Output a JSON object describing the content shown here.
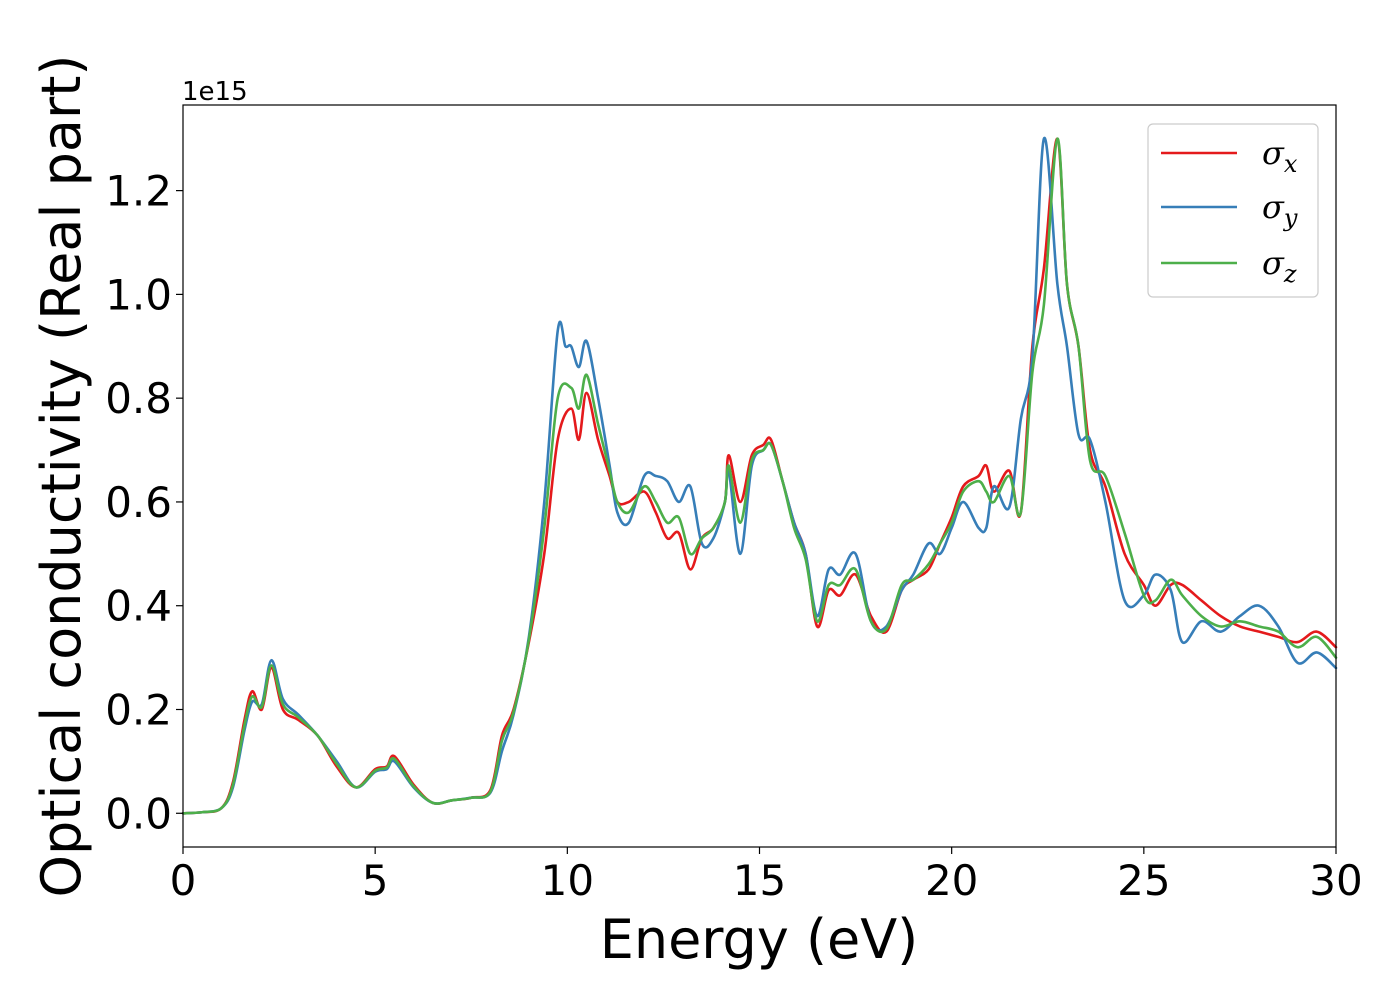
{
  "chart_data": {
    "type": "line",
    "xlabel": "Energy (eV)",
    "ylabel": "Optical conductivity (Real part)",
    "y_offset_label": "1e15",
    "xlim": [
      0,
      30
    ],
    "ylim": [
      -0.065,
      1.365
    ],
    "xticks": [
      0,
      5,
      10,
      15,
      20,
      25,
      30
    ],
    "yticks": [
      0.0,
      0.2,
      0.4,
      0.6,
      0.8,
      1.0,
      1.2
    ],
    "xtick_labels": [
      "0",
      "5",
      "10",
      "15",
      "20",
      "25",
      "30"
    ],
    "ytick_labels": [
      "0.0",
      "0.2",
      "0.4",
      "0.6",
      "0.8",
      "1.0",
      "1.2"
    ],
    "grid": false,
    "legend_position": "top-right",
    "series": [
      {
        "name": "σ_x",
        "label_main": "σ",
        "label_sub": "x",
        "color": "#e41a1c",
        "x": [
          0,
          0.5,
          1.0,
          1.3,
          1.6,
          1.8,
          2.05,
          2.3,
          2.6,
          3.0,
          3.5,
          4.0,
          4.5,
          5.0,
          5.3,
          5.5,
          6.0,
          6.5,
          7.0,
          7.5,
          8.0,
          8.3,
          8.6,
          9.0,
          9.4,
          9.75,
          10.1,
          10.3,
          10.5,
          10.8,
          11.1,
          11.3,
          11.6,
          12.0,
          12.3,
          12.6,
          12.9,
          13.2,
          13.5,
          13.8,
          14.1,
          14.2,
          14.5,
          14.8,
          15.1,
          15.3,
          15.6,
          15.9,
          16.2,
          16.5,
          16.8,
          17.1,
          17.5,
          17.9,
          18.3,
          18.7,
          19.0,
          19.4,
          19.7,
          20.0,
          20.3,
          20.7,
          20.9,
          21.1,
          21.5,
          21.8,
          22.1,
          22.4,
          22.75,
          23.0,
          23.3,
          23.6,
          24.0,
          24.5,
          25.0,
          25.3,
          25.7,
          26.0,
          26.5,
          27.0,
          27.5,
          28.0,
          28.5,
          29.0,
          29.5,
          30.0
        ],
        "y": [
          0.0,
          0.002,
          0.01,
          0.06,
          0.18,
          0.235,
          0.2,
          0.28,
          0.2,
          0.18,
          0.15,
          0.09,
          0.05,
          0.085,
          0.09,
          0.11,
          0.055,
          0.02,
          0.025,
          0.03,
          0.045,
          0.15,
          0.2,
          0.33,
          0.5,
          0.72,
          0.78,
          0.72,
          0.81,
          0.72,
          0.65,
          0.6,
          0.6,
          0.62,
          0.58,
          0.53,
          0.54,
          0.47,
          0.53,
          0.55,
          0.6,
          0.69,
          0.6,
          0.69,
          0.71,
          0.72,
          0.64,
          0.56,
          0.5,
          0.36,
          0.43,
          0.42,
          0.46,
          0.38,
          0.35,
          0.43,
          0.45,
          0.47,
          0.52,
          0.57,
          0.63,
          0.65,
          0.67,
          0.62,
          0.66,
          0.58,
          0.9,
          1.05,
          1.3,
          1.02,
          0.9,
          0.7,
          0.63,
          0.5,
          0.44,
          0.4,
          0.44,
          0.44,
          0.41,
          0.38,
          0.36,
          0.35,
          0.34,
          0.33,
          0.35,
          0.32
        ]
      },
      {
        "name": "σ_y",
        "label_main": "σ",
        "label_sub": "y",
        "color": "#377eb8",
        "x": [
          0,
          0.5,
          1.0,
          1.3,
          1.6,
          1.8,
          2.05,
          2.3,
          2.6,
          3.0,
          3.5,
          4.0,
          4.5,
          5.0,
          5.3,
          5.5,
          6.0,
          6.5,
          7.0,
          7.5,
          8.0,
          8.3,
          8.6,
          9.0,
          9.4,
          9.75,
          9.95,
          10.1,
          10.3,
          10.5,
          10.8,
          11.1,
          11.3,
          11.6,
          12.0,
          12.3,
          12.6,
          12.9,
          13.2,
          13.5,
          13.8,
          14.1,
          14.2,
          14.5,
          14.8,
          15.1,
          15.3,
          15.6,
          15.9,
          16.2,
          16.5,
          16.8,
          17.1,
          17.5,
          17.9,
          18.3,
          18.7,
          19.0,
          19.4,
          19.7,
          20.0,
          20.3,
          20.7,
          20.9,
          21.1,
          21.5,
          21.8,
          22.1,
          22.4,
          22.75,
          23.0,
          23.3,
          23.6,
          24.0,
          24.5,
          25.0,
          25.3,
          25.7,
          26.0,
          26.5,
          27.0,
          27.5,
          28.0,
          28.5,
          29.0,
          29.5,
          30.0
        ],
        "y": [
          0.0,
          0.002,
          0.01,
          0.05,
          0.16,
          0.215,
          0.21,
          0.295,
          0.22,
          0.19,
          0.15,
          0.1,
          0.05,
          0.08,
          0.085,
          0.1,
          0.05,
          0.02,
          0.025,
          0.03,
          0.04,
          0.12,
          0.19,
          0.34,
          0.6,
          0.93,
          0.9,
          0.9,
          0.86,
          0.91,
          0.8,
          0.67,
          0.58,
          0.56,
          0.65,
          0.65,
          0.64,
          0.6,
          0.63,
          0.52,
          0.53,
          0.6,
          0.66,
          0.5,
          0.67,
          0.7,
          0.71,
          0.64,
          0.56,
          0.5,
          0.38,
          0.47,
          0.46,
          0.5,
          0.37,
          0.36,
          0.43,
          0.46,
          0.52,
          0.5,
          0.55,
          0.6,
          0.55,
          0.55,
          0.63,
          0.59,
          0.76,
          0.88,
          1.3,
          1.02,
          0.9,
          0.73,
          0.72,
          0.6,
          0.41,
          0.42,
          0.46,
          0.43,
          0.33,
          0.37,
          0.35,
          0.38,
          0.4,
          0.36,
          0.29,
          0.31,
          0.28
        ]
      },
      {
        "name": "σ_z",
        "label_main": "σ",
        "label_sub": "z",
        "color": "#4daf4a",
        "x": [
          0,
          0.5,
          1.0,
          1.3,
          1.6,
          1.8,
          2.05,
          2.3,
          2.6,
          3.0,
          3.5,
          4.0,
          4.5,
          5.0,
          5.3,
          5.5,
          6.0,
          6.5,
          7.0,
          7.5,
          8.0,
          8.3,
          8.6,
          9.0,
          9.4,
          9.75,
          10.1,
          10.3,
          10.5,
          10.8,
          11.1,
          11.3,
          11.6,
          12.0,
          12.3,
          12.6,
          12.9,
          13.2,
          13.5,
          13.8,
          14.1,
          14.2,
          14.5,
          14.8,
          15.1,
          15.3,
          15.6,
          15.9,
          16.2,
          16.5,
          16.8,
          17.1,
          17.5,
          17.9,
          18.3,
          18.7,
          19.0,
          19.4,
          19.7,
          20.0,
          20.3,
          20.7,
          20.9,
          21.1,
          21.5,
          21.8,
          22.1,
          22.4,
          22.75,
          23.0,
          23.3,
          23.6,
          24.0,
          24.5,
          25.0,
          25.3,
          25.7,
          26.0,
          26.5,
          27.0,
          27.5,
          28.0,
          28.5,
          29.0,
          29.5,
          30.0
        ],
        "y": [
          0.0,
          0.002,
          0.01,
          0.055,
          0.17,
          0.225,
          0.205,
          0.285,
          0.21,
          0.185,
          0.15,
          0.095,
          0.05,
          0.082,
          0.088,
          0.105,
          0.052,
          0.02,
          0.025,
          0.03,
          0.042,
          0.14,
          0.195,
          0.335,
          0.55,
          0.8,
          0.82,
          0.78,
          0.845,
          0.75,
          0.66,
          0.6,
          0.58,
          0.63,
          0.6,
          0.56,
          0.57,
          0.5,
          0.53,
          0.55,
          0.6,
          0.67,
          0.56,
          0.68,
          0.7,
          0.71,
          0.64,
          0.55,
          0.49,
          0.37,
          0.44,
          0.44,
          0.47,
          0.37,
          0.355,
          0.44,
          0.45,
          0.48,
          0.52,
          0.56,
          0.62,
          0.64,
          0.62,
          0.6,
          0.65,
          0.58,
          0.85,
          0.98,
          1.3,
          1.02,
          0.9,
          0.68,
          0.65,
          0.54,
          0.42,
          0.41,
          0.45,
          0.42,
          0.38,
          0.36,
          0.37,
          0.36,
          0.35,
          0.32,
          0.34,
          0.3
        ]
      }
    ]
  }
}
